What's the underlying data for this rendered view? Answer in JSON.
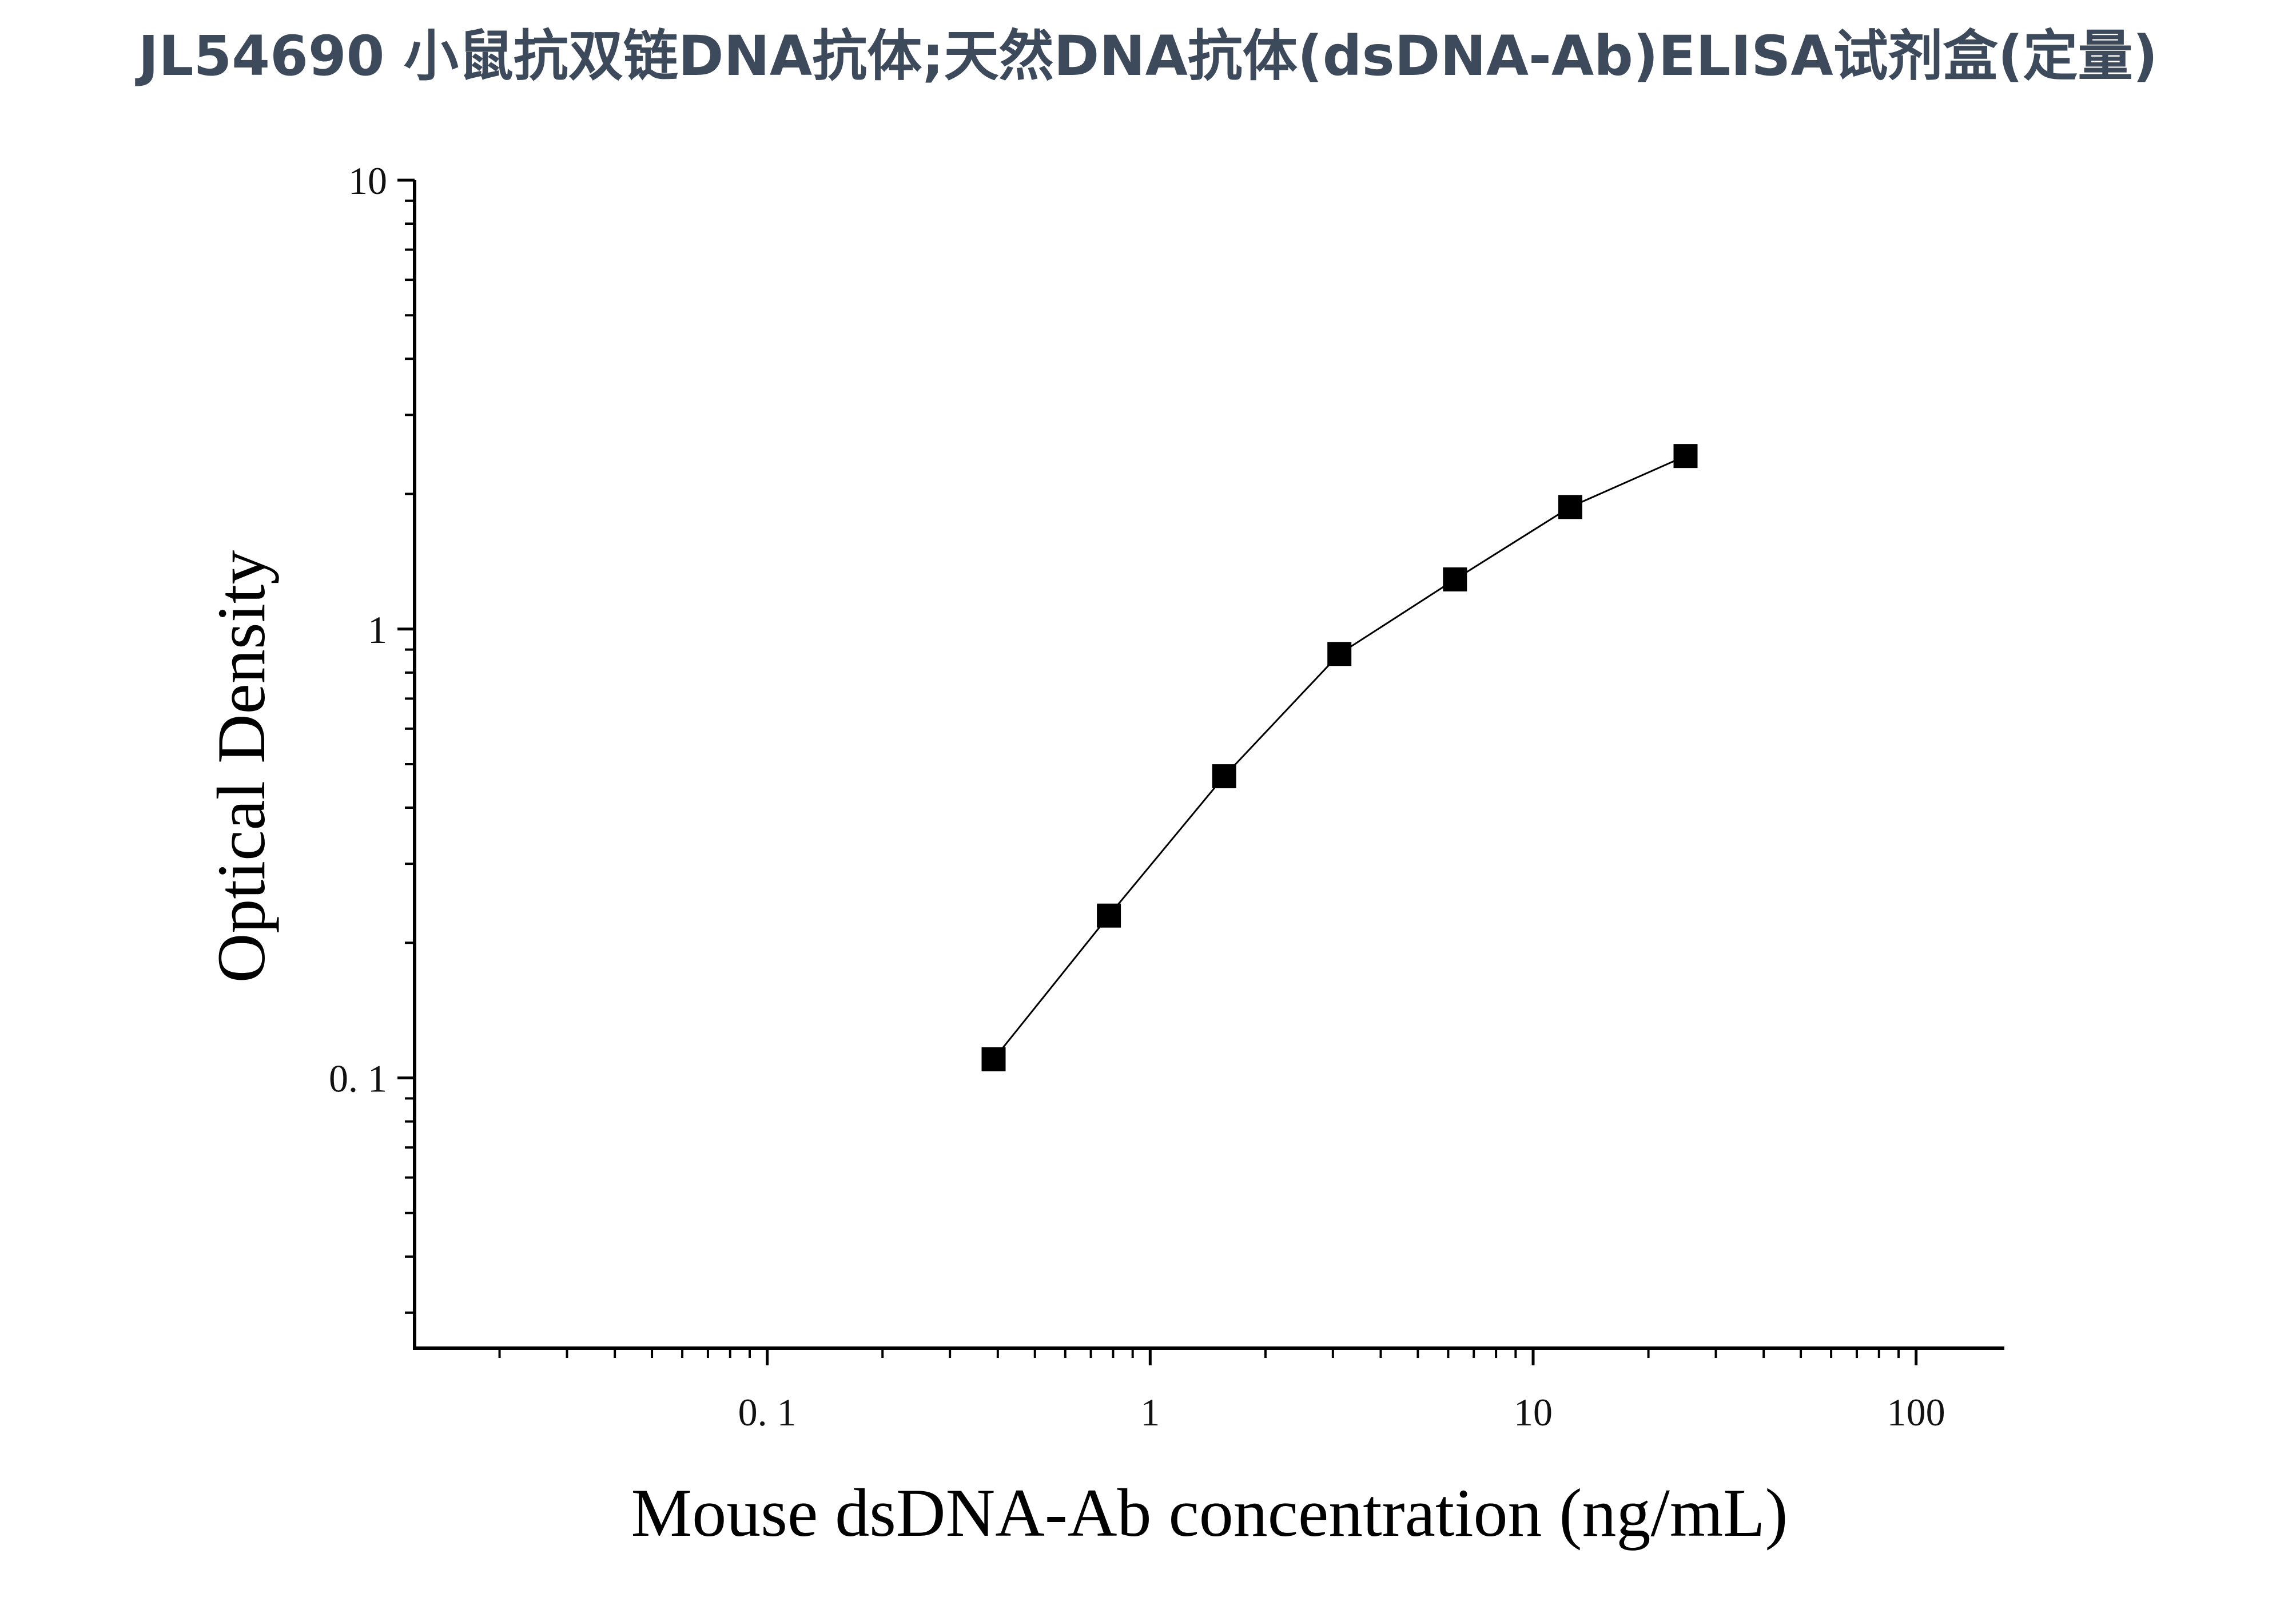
{
  "page": {
    "title": "JL54690 小鼠抗双链DNA抗体;天然DNA抗体(dsDNA-Ab)ELISA试剂盒(定量)"
  },
  "chart_data": {
    "type": "line",
    "title": "",
    "xlabel": "Mouse dsDNA-Ab concentration (ng/mL)",
    "ylabel": "Optical Density",
    "x_scale": "log",
    "y_scale": "log",
    "xlim": [
      0.012,
      170
    ],
    "ylim": [
      0.025,
      10
    ],
    "x_ticks": [
      {
        "value": 0.1,
        "label": "0. 1"
      },
      {
        "value": 1,
        "label": "1"
      },
      {
        "value": 10,
        "label": "10"
      },
      {
        "value": 100,
        "label": "100"
      }
    ],
    "y_ticks": [
      {
        "value": 0.1,
        "label": "0. 1"
      },
      {
        "value": 1,
        "label": "1"
      },
      {
        "value": 10,
        "label": "10"
      }
    ],
    "grid": false,
    "legend": "none",
    "marker": "square",
    "line_color": "#000000",
    "marker_color": "#000000",
    "series": [
      {
        "x": [
          0.39,
          0.78,
          1.56,
          3.12,
          6.25,
          12.5,
          25
        ],
        "y": [
          0.11,
          0.23,
          0.47,
          0.88,
          1.29,
          1.87,
          2.43
        ]
      }
    ]
  }
}
